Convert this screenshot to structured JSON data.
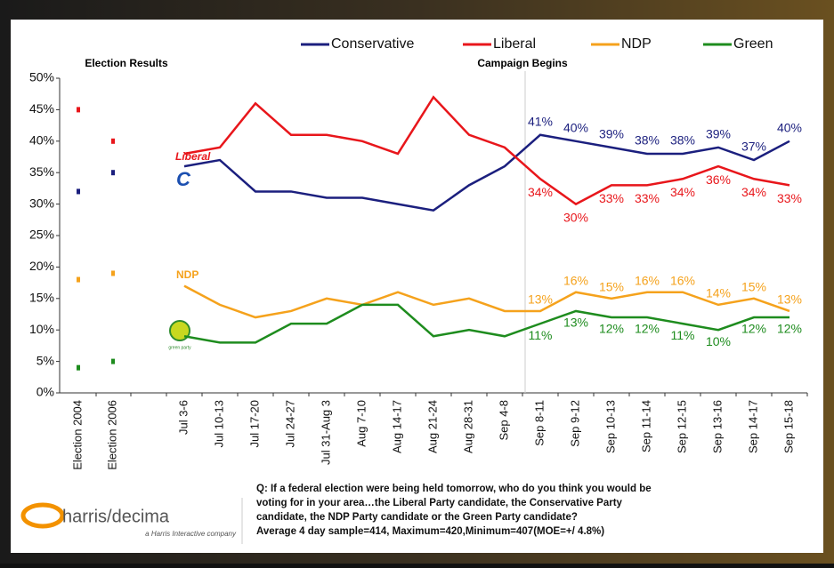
{
  "chart_data": {
    "type": "line",
    "annotations": {
      "left": "Election Results",
      "campaign": "Campaign Begins"
    },
    "categories": [
      "Election 2004",
      "Election 2006",
      null,
      "Jul 3-6",
      "Jul 10-13",
      "Jul 17-20",
      "Jul 24-27",
      "Jul 31-Aug 3",
      "Aug 7-10",
      "Aug 14-17",
      "Aug 21-24",
      "Aug 28-31",
      "Sep 4-8",
      "Sep 8-11",
      "Sep 9-12",
      "Sep 10-13",
      "Sep 11-14",
      "Sep 12-15",
      "Sep 13-16",
      "Sep 14-17",
      "Sep 15-18"
    ],
    "series": [
      {
        "name": "Conservative",
        "color": "#1b1f7e",
        "values": [
          32,
          35,
          null,
          36,
          37,
          32,
          32,
          31,
          31,
          30,
          29,
          33,
          36,
          41,
          40,
          39,
          38,
          38,
          39,
          37,
          40
        ],
        "value_labels": [
          null,
          null,
          null,
          null,
          null,
          null,
          null,
          null,
          null,
          null,
          null,
          null,
          null,
          "41%",
          "40%",
          "39%",
          "38%",
          "38%",
          "39%",
          "37%",
          "40%"
        ]
      },
      {
        "name": "Liberal",
        "color": "#e8161b",
        "values": [
          45,
          40,
          null,
          38,
          39,
          46,
          41,
          41,
          40,
          38,
          47,
          41,
          39,
          34,
          30,
          33,
          33,
          34,
          36,
          34,
          33
        ],
        "value_labels": [
          null,
          null,
          null,
          null,
          null,
          null,
          null,
          null,
          null,
          null,
          null,
          null,
          null,
          "34%",
          "30%",
          "33%",
          "33%",
          "34%",
          "36%",
          "34%",
          "33%"
        ]
      },
      {
        "name": "NDP",
        "color": "#f5a21c",
        "values": [
          18,
          19,
          null,
          17,
          14,
          12,
          13,
          15,
          14,
          16,
          14,
          15,
          13,
          13,
          16,
          15,
          16,
          16,
          14,
          15,
          13
        ],
        "value_labels": [
          null,
          null,
          null,
          null,
          null,
          null,
          null,
          null,
          null,
          null,
          null,
          null,
          null,
          "13%",
          "16%",
          "15%",
          "16%",
          "16%",
          "14%",
          "15%",
          "13%"
        ]
      },
      {
        "name": "Green",
        "color": "#1e8c1e",
        "values": [
          4,
          5,
          null,
          9,
          8,
          8,
          11,
          11,
          14,
          14,
          9,
          10,
          9,
          11,
          13,
          12,
          12,
          11,
          10,
          12,
          12
        ],
        "value_labels": [
          null,
          null,
          null,
          null,
          null,
          null,
          null,
          null,
          null,
          null,
          null,
          null,
          null,
          "11%",
          "13%",
          "12%",
          "12%",
          "11%",
          "10%",
          "12%",
          "12%"
        ]
      }
    ],
    "ylim": [
      0,
      50
    ],
    "yticks": [
      {
        "value": 0,
        "label": "0%"
      },
      {
        "value": 5,
        "label": "5%"
      },
      {
        "value": 10,
        "label": "10%"
      },
      {
        "value": 15,
        "label": "15%"
      },
      {
        "value": 20,
        "label": "20%"
      },
      {
        "value": 25,
        "label": "25%"
      },
      {
        "value": 30,
        "label": "30%"
      },
      {
        "value": 35,
        "label": "35%"
      },
      {
        "value": 40,
        "label": "40%"
      },
      {
        "value": 45,
        "label": "45%"
      },
      {
        "value": 50,
        "label": "50%"
      }
    ],
    "grid": false,
    "legend": "top",
    "logos": [
      "Liberal",
      "NDP",
      "green party"
    ]
  },
  "footer": {
    "brand": "harris/decima",
    "tagline": "a Harris Interactive company",
    "note": [
      "Q: If a federal election were being held tomorrow, who do you think you would be",
      "voting for in your area…the Liberal Party candidate, the Conservative Party",
      "candidate, the NDP Party candidate or the Green Party candidate?",
      "Average 4 day sample=414, Maximum=420,Minimum=407(MOE=+/ 4.8%)"
    ]
  }
}
